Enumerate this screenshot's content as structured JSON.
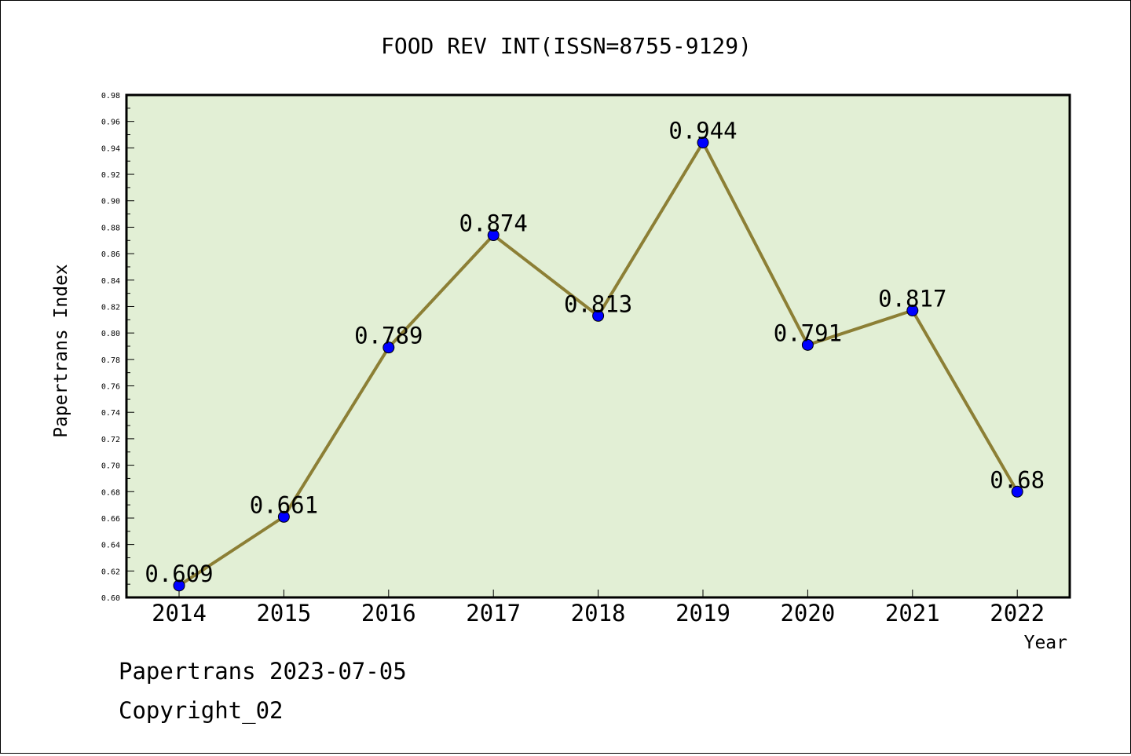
{
  "chart_data": {
    "type": "line",
    "title": "FOOD REV INT(ISSN=8755-9129)",
    "xlabel": "Year",
    "ylabel": "Papertrans Index",
    "categories": [
      "2014",
      "2015",
      "2016",
      "2017",
      "2018",
      "2019",
      "2020",
      "2021",
      "2022"
    ],
    "series": [
      {
        "values": [
          0.609,
          0.661,
          0.789,
          0.874,
          0.813,
          0.944,
          0.791,
          0.817,
          0.68
        ],
        "labels": [
          "0.609",
          "0.661",
          "0.789",
          "0.874",
          "0.813",
          "0.944",
          "0.791",
          "0.817",
          "0.68"
        ]
      }
    ],
    "ylim": [
      0.6,
      0.98
    ],
    "yticks": [
      "0.60",
      "0.62",
      "0.64",
      "0.66",
      "0.68",
      "0.70",
      "0.72",
      "0.74",
      "0.76",
      "0.78",
      "0.80",
      "0.82",
      "0.84",
      "0.86",
      "0.88",
      "0.90",
      "0.92",
      "0.94",
      "0.96",
      "0.98"
    ],
    "grid": false,
    "colors": {
      "plot_background": "#e2efd5",
      "line": "#8c7f35",
      "marker": "#0000ff"
    }
  },
  "footer": {
    "line1": "Papertrans 2023-07-05",
    "line2": "Copyright_02"
  }
}
